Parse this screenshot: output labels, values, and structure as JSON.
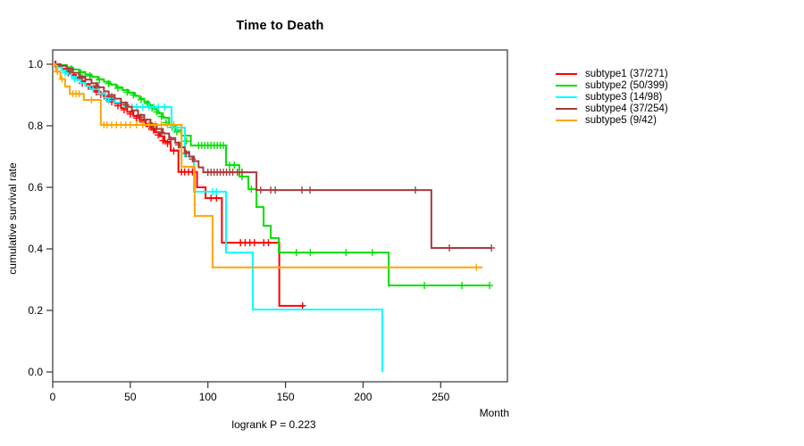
{
  "chart_data": {
    "type": "line",
    "variant": "kaplan-meier-step",
    "title": "Time to Death",
    "xlabel": "Month",
    "ylabel": "cumulative survival rate",
    "annotation": "logrank P = 0.223",
    "x_ticks": [
      0,
      50,
      100,
      150,
      200,
      250
    ],
    "y_ticks": [
      0.0,
      0.2,
      0.4,
      0.6,
      0.8,
      1.0
    ],
    "xlim": [
      0,
      293
    ],
    "ylim": [
      0.0,
      1.0
    ],
    "grid": false,
    "legend_position": "right-outside-top",
    "axis_color": "#333333",
    "series": [
      {
        "name": "subtype1",
        "label": "subtype1 (37/271)",
        "events": 37,
        "n": 271,
        "color": "#FF0000",
        "steps": [
          [
            0,
            1.0
          ],
          [
            3,
            0.995
          ],
          [
            6,
            0.985
          ],
          [
            9,
            0.975
          ],
          [
            12,
            0.965
          ],
          [
            15,
            0.955
          ],
          [
            18,
            0.945
          ],
          [
            21,
            0.935
          ],
          [
            24,
            0.925
          ],
          [
            27,
            0.915
          ],
          [
            30,
            0.905
          ],
          [
            33,
            0.895
          ],
          [
            36,
            0.885
          ],
          [
            40,
            0.872
          ],
          [
            44,
            0.858
          ],
          [
            48,
            0.845
          ],
          [
            52,
            0.832
          ],
          [
            56,
            0.818
          ],
          [
            60,
            0.805
          ],
          [
            63,
            0.792
          ],
          [
            66,
            0.779
          ],
          [
            69,
            0.766
          ],
          [
            72,
            0.748
          ],
          [
            76,
            0.72
          ],
          [
            81,
            0.65
          ],
          [
            93,
            0.6
          ],
          [
            98.5,
            0.565
          ],
          [
            109,
            0.42
          ],
          [
            146,
            0.215
          ],
          [
            162,
            0.215
          ]
        ],
        "censors": [
          [
            1.5,
            1.0
          ],
          [
            10,
            0.972
          ],
          [
            14,
            0.958
          ],
          [
            19,
            0.938
          ],
          [
            23,
            0.928
          ],
          [
            28,
            0.91
          ],
          [
            31,
            0.902
          ],
          [
            35,
            0.888
          ],
          [
            38,
            0.878
          ],
          [
            42,
            0.865
          ],
          [
            46,
            0.852
          ],
          [
            50,
            0.838
          ],
          [
            54,
            0.825
          ],
          [
            58,
            0.812
          ],
          [
            62,
            0.798
          ],
          [
            65,
            0.786
          ],
          [
            68,
            0.77
          ],
          [
            71,
            0.752
          ],
          [
            74,
            0.742
          ],
          [
            78,
            0.718
          ],
          [
            83,
            0.65
          ],
          [
            85,
            0.65
          ],
          [
            87.5,
            0.65
          ],
          [
            90,
            0.65
          ],
          [
            102,
            0.565
          ],
          [
            105.5,
            0.565
          ],
          [
            121,
            0.42
          ],
          [
            124,
            0.42
          ],
          [
            127,
            0.42
          ],
          [
            130,
            0.42
          ],
          [
            136,
            0.42
          ],
          [
            139,
            0.42
          ],
          [
            161,
            0.215
          ]
        ]
      },
      {
        "name": "subtype2",
        "label": "subtype2 (50/399)",
        "events": 50,
        "n": 399,
        "color": "#00E000",
        "steps": [
          [
            0,
            1.0
          ],
          [
            5,
            0.997
          ],
          [
            9,
            0.99
          ],
          [
            13,
            0.983
          ],
          [
            17,
            0.975
          ],
          [
            21,
            0.967
          ],
          [
            25,
            0.959
          ],
          [
            29,
            0.951
          ],
          [
            33,
            0.943
          ],
          [
            37,
            0.934
          ],
          [
            41,
            0.925
          ],
          [
            45,
            0.916
          ],
          [
            49,
            0.907
          ],
          [
            53,
            0.897
          ],
          [
            56,
            0.888
          ],
          [
            59,
            0.878
          ],
          [
            62,
            0.867
          ],
          [
            65,
            0.854
          ],
          [
            68,
            0.841
          ],
          [
            71,
            0.826
          ],
          [
            75,
            0.803
          ],
          [
            79,
            0.785
          ],
          [
            83,
            0.768
          ],
          [
            89,
            0.736
          ],
          [
            111.7,
            0.672
          ],
          [
            120.3,
            0.635
          ],
          [
            126.1,
            0.594
          ],
          [
            131.3,
            0.536
          ],
          [
            135.9,
            0.475
          ],
          [
            140.5,
            0.435
          ],
          [
            145.7,
            0.388
          ],
          [
            216.5,
            0.281
          ],
          [
            281.5,
            0.281
          ]
        ],
        "censors": [
          [
            2,
            1.0
          ],
          [
            12,
            0.985
          ],
          [
            18,
            0.972
          ],
          [
            24,
            0.962
          ],
          [
            30,
            0.949
          ],
          [
            36,
            0.937
          ],
          [
            42,
            0.922
          ],
          [
            48,
            0.909
          ],
          [
            52,
            0.9
          ],
          [
            57,
            0.885
          ],
          [
            61,
            0.872
          ],
          [
            64,
            0.858
          ],
          [
            67,
            0.845
          ],
          [
            70,
            0.83
          ],
          [
            73,
            0.81
          ],
          [
            77,
            0.795
          ],
          [
            80,
            0.78
          ],
          [
            86,
            0.75
          ],
          [
            94,
            0.736
          ],
          [
            96,
            0.736
          ],
          [
            98,
            0.736
          ],
          [
            100,
            0.736
          ],
          [
            102,
            0.736
          ],
          [
            104,
            0.736
          ],
          [
            106,
            0.736
          ],
          [
            108,
            0.736
          ],
          [
            110,
            0.736
          ],
          [
            114,
            0.672
          ],
          [
            117,
            0.672
          ],
          [
            122,
            0.635
          ],
          [
            128,
            0.594
          ],
          [
            157,
            0.388
          ],
          [
            166,
            0.388
          ],
          [
            189,
            0.388
          ],
          [
            206,
            0.388
          ],
          [
            239.5,
            0.281
          ],
          [
            263.7,
            0.281
          ],
          [
            281.5,
            0.281
          ]
        ]
      },
      {
        "name": "subtype3",
        "label": "subtype3 (14/98)",
        "events": 14,
        "n": 98,
        "color": "#00FFFF",
        "steps": [
          [
            0,
            1.0
          ],
          [
            3,
            0.99
          ],
          [
            6,
            0.98
          ],
          [
            9,
            0.969
          ],
          [
            12,
            0.959
          ],
          [
            15,
            0.949
          ],
          [
            18,
            0.939
          ],
          [
            21,
            0.929
          ],
          [
            24,
            0.919
          ],
          [
            30,
            0.904
          ],
          [
            34,
            0.89
          ],
          [
            40,
            0.875
          ],
          [
            46,
            0.861
          ],
          [
            76.6,
            0.794
          ],
          [
            85.2,
            0.7
          ],
          [
            91,
            0.586
          ],
          [
            111.7,
            0.388
          ],
          [
            129,
            0.203
          ],
          [
            212.4,
            0.0
          ]
        ],
        "censors": [
          [
            8,
            0.972
          ],
          [
            14,
            0.952
          ],
          [
            26,
            0.919
          ],
          [
            36,
            0.882
          ],
          [
            51,
            0.861
          ],
          [
            54,
            0.861
          ],
          [
            58,
            0.861
          ],
          [
            62,
            0.861
          ],
          [
            65,
            0.861
          ],
          [
            68,
            0.861
          ],
          [
            72,
            0.861
          ],
          [
            80,
            0.794
          ],
          [
            103,
            0.586
          ],
          [
            105.5,
            0.586
          ]
        ]
      },
      {
        "name": "subtype4",
        "label": "subtype4 (37/254)",
        "events": 37,
        "n": 254,
        "color": "#A63C3C",
        "steps": [
          [
            0,
            1.0
          ],
          [
            5,
            0.995
          ],
          [
            9,
            0.985
          ],
          [
            13,
            0.972
          ],
          [
            17,
            0.96
          ],
          [
            21,
            0.95
          ],
          [
            25,
            0.938
          ],
          [
            29,
            0.925
          ],
          [
            33,
            0.912
          ],
          [
            36,
            0.9
          ],
          [
            40,
            0.888
          ],
          [
            44,
            0.875
          ],
          [
            48,
            0.862
          ],
          [
            51,
            0.85
          ],
          [
            55,
            0.835
          ],
          [
            59,
            0.82
          ],
          [
            63,
            0.805
          ],
          [
            67,
            0.79
          ],
          [
            71,
            0.775
          ],
          [
            75,
            0.76
          ],
          [
            79,
            0.745
          ],
          [
            82,
            0.73
          ],
          [
            85,
            0.715
          ],
          [
            88,
            0.7
          ],
          [
            91,
            0.685
          ],
          [
            94,
            0.665
          ],
          [
            97,
            0.649
          ],
          [
            131.3,
            0.591
          ],
          [
            244,
            0.403
          ],
          [
            282.7,
            0.403
          ]
        ],
        "censors": [
          [
            2,
            1.0
          ],
          [
            11,
            0.978
          ],
          [
            19,
            0.955
          ],
          [
            28,
            0.93
          ],
          [
            38,
            0.894
          ],
          [
            47,
            0.868
          ],
          [
            57,
            0.828
          ],
          [
            64,
            0.8
          ],
          [
            70,
            0.778
          ],
          [
            76,
            0.755
          ],
          [
            81,
            0.738
          ],
          [
            86,
            0.71
          ],
          [
            90,
            0.692
          ],
          [
            100,
            0.649
          ],
          [
            102,
            0.649
          ],
          [
            104,
            0.649
          ],
          [
            106,
            0.649
          ],
          [
            108,
            0.649
          ],
          [
            110,
            0.649
          ],
          [
            112,
            0.649
          ],
          [
            114,
            0.649
          ],
          [
            116,
            0.649
          ],
          [
            119,
            0.649
          ],
          [
            122,
            0.649
          ],
          [
            134,
            0.591
          ],
          [
            140.5,
            0.591
          ],
          [
            143.4,
            0.591
          ],
          [
            160.6,
            0.591
          ],
          [
            165.8,
            0.591
          ],
          [
            233.7,
            0.591
          ],
          [
            255.6,
            0.403
          ],
          [
            282.7,
            0.403
          ]
        ]
      },
      {
        "name": "subtype5",
        "label": "subtype5 (9/42)",
        "events": 9,
        "n": 42,
        "color": "#FFA500",
        "steps": [
          [
            0,
            1.0
          ],
          [
            2,
            0.976
          ],
          [
            5,
            0.952
          ],
          [
            8,
            0.928
          ],
          [
            11,
            0.904
          ],
          [
            20,
            0.884
          ],
          [
            31,
            0.803
          ],
          [
            83,
            0.667
          ],
          [
            91.5,
            0.507
          ],
          [
            103,
            0.34
          ],
          [
            277,
            0.34
          ]
        ],
        "censors": [
          [
            3,
            0.976
          ],
          [
            6,
            0.952
          ],
          [
            13,
            0.904
          ],
          [
            15,
            0.904
          ],
          [
            17,
            0.904
          ],
          [
            25,
            0.884
          ],
          [
            33,
            0.803
          ],
          [
            35,
            0.803
          ],
          [
            38,
            0.803
          ],
          [
            41,
            0.803
          ],
          [
            44,
            0.803
          ],
          [
            47,
            0.803
          ],
          [
            50,
            0.803
          ],
          [
            54,
            0.803
          ],
          [
            58,
            0.803
          ],
          [
            62,
            0.803
          ],
          [
            66,
            0.803
          ],
          [
            70,
            0.803
          ],
          [
            74,
            0.803
          ],
          [
            78,
            0.803
          ],
          [
            273,
            0.34
          ]
        ]
      }
    ]
  }
}
